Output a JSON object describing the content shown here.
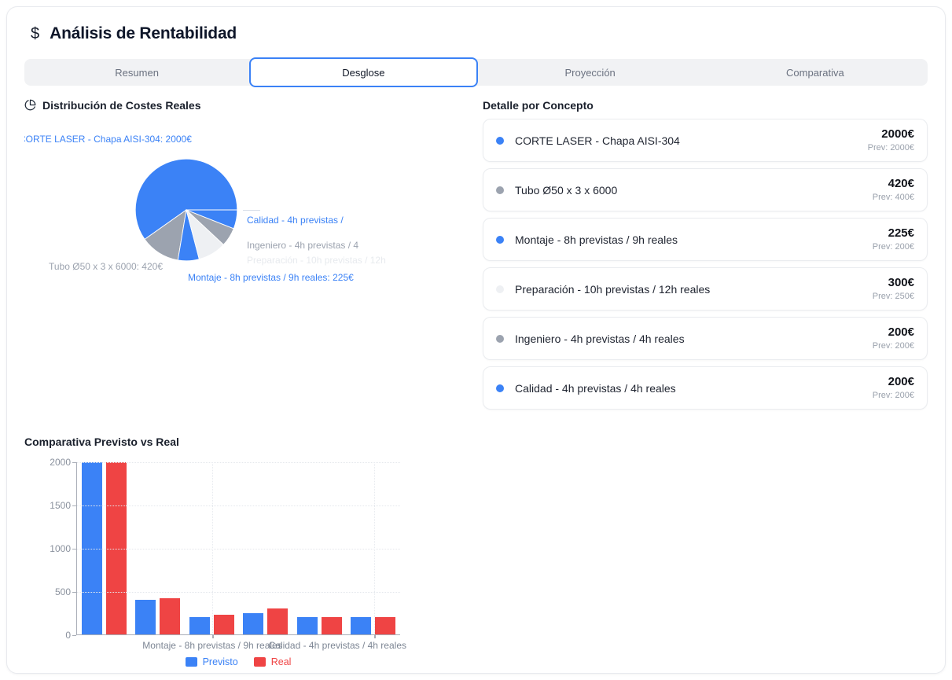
{
  "header": {
    "title": "Análisis de Rentabilidad",
    "icon": "dollar-sign"
  },
  "tabs": {
    "items": [
      {
        "label": "Resumen",
        "active": false
      },
      {
        "label": "Desglose",
        "active": true
      },
      {
        "label": "Proyección",
        "active": false
      },
      {
        "label": "Comparativa",
        "active": false
      }
    ]
  },
  "pie_section": {
    "title": "Distribución de Costes Reales",
    "icon": "pie-chart-icon"
  },
  "detail": {
    "title": "Detalle por Concepto",
    "items": [
      {
        "label": "CORTE LASER - Chapa AISI-304",
        "value": "2000€",
        "prev": "Prev: 2000€",
        "dot_color": "#3b82f6"
      },
      {
        "label": "Tubo Ø50 x 3 x 6000",
        "value": "420€",
        "prev": "Prev: 400€",
        "dot_color": "#9ca3af"
      },
      {
        "label": "Montaje - 8h previstas / 9h reales",
        "value": "225€",
        "prev": "Prev: 200€",
        "dot_color": "#3b82f6"
      },
      {
        "label": "Preparación - 10h previstas / 12h reales",
        "value": "300€",
        "prev": "Prev: 250€",
        "dot_color": "#eef0f3"
      },
      {
        "label": "Ingeniero - 4h previstas / 4h reales",
        "value": "200€",
        "prev": "Prev: 200€",
        "dot_color": "#9ca3af"
      },
      {
        "label": "Calidad - 4h previstas / 4h reales",
        "value": "200€",
        "prev": "Prev: 200€",
        "dot_color": "#3b82f6"
      }
    ]
  },
  "bar_section": {
    "title": "Comparativa Previsto vs Real"
  },
  "chart_data": [
    {
      "type": "pie",
      "title": "Distribución de Costes Reales",
      "slices": [
        {
          "label": "CORTE LASER - Chapa AISI-304",
          "value": 2000,
          "color": "#3b82f6",
          "callout": "CORTE LASER - Chapa AISI-304: 2000€"
        },
        {
          "label": "Tubo Ø50 x 3 x 6000",
          "value": 420,
          "color": "#9ca3af",
          "callout": "Tubo Ø50 x 3 x 6000: 420€"
        },
        {
          "label": "Montaje - 8h previstas / 9h reales",
          "value": 225,
          "color": "#3b82f6",
          "callout": "Montaje - 8h previstas / 9h reales: 225€"
        },
        {
          "label": "Preparación - 10h previstas / 12h reales",
          "value": 300,
          "color": "#eef0f3",
          "callout": "Preparación - 10h previstas / 12h"
        },
        {
          "label": "Ingeniero - 4h previstas / 4h reales",
          "value": 200,
          "color": "#9ca3af",
          "callout": "Ingeniero - 4h previstas / 4"
        },
        {
          "label": "Calidad - 4h previstas / 4h reales",
          "value": 200,
          "color": "#3b82f6",
          "callout": "Calidad - 4h previstas /"
        }
      ],
      "start_angle_deg": 0,
      "direction": "counterclockwise"
    },
    {
      "type": "bar",
      "title": "Comparativa Previsto vs Real",
      "categories": [
        "CORTE LASER - Chapa AISI-304",
        "Tubo Ø50 x 3 x 6000",
        "Montaje - 8h previstas / 9h reales",
        "Preparación - 10h previstas / 12h reales",
        "Ingeniero - 4h previstas / 4h reales",
        "Calidad - 4h previstas / 4h reales"
      ],
      "series": [
        {
          "name": "Previsto",
          "color": "#3b82f6",
          "values": [
            2000,
            400,
            200,
            250,
            200,
            200
          ]
        },
        {
          "name": "Real",
          "color": "#ef4444",
          "values": [
            2000,
            420,
            225,
            300,
            200,
            200
          ]
        }
      ],
      "visible_x_labels": [
        {
          "text": "Montaje - 8h previstas / 9h reales"
        },
        {
          "text": "Calidad - 4h previstas / 4h reales"
        }
      ],
      "y_ticks": [
        0,
        500,
        1000,
        1500,
        2000
      ],
      "ylim": [
        0,
        2000
      ],
      "grid": "dotted",
      "legend_position": "bottom"
    }
  ],
  "colors": {
    "accent_blue": "#3b82f6",
    "accent_red": "#ef4444",
    "gray": "#9ca3af",
    "light_gray": "#eef0f3",
    "tab_bar_bg": "#f1f2f4"
  }
}
